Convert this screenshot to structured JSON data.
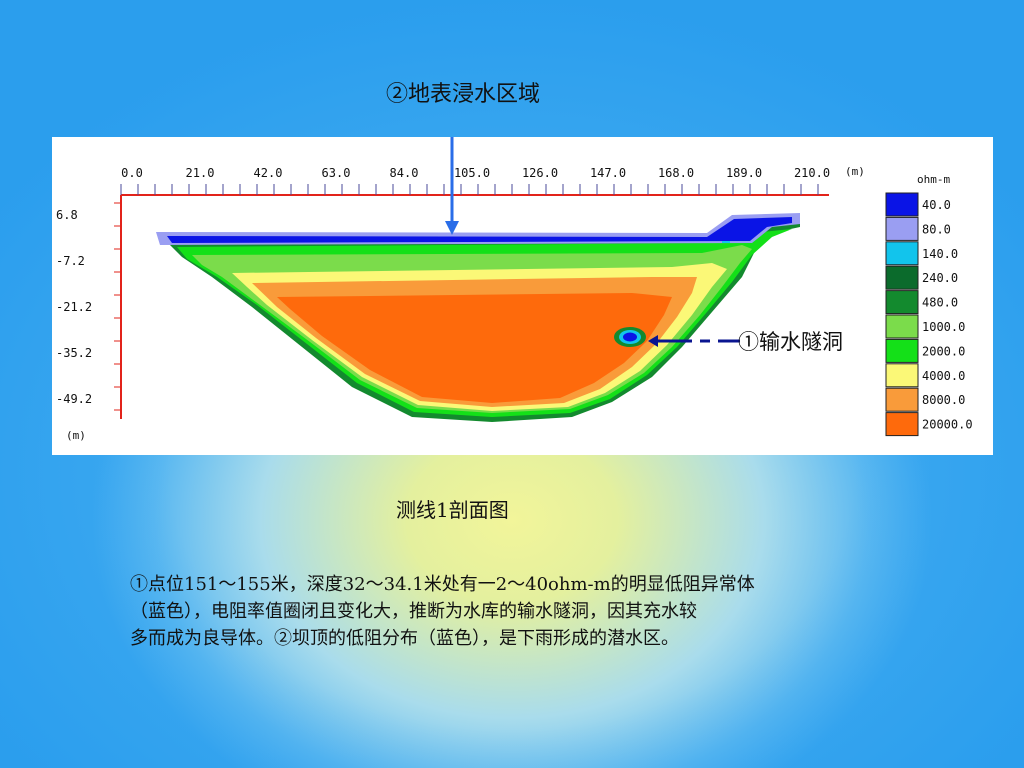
{
  "top_label": "②地表浸水区域",
  "tunnel_label": "①输水隧洞",
  "figure_caption": "测线1剖面图",
  "description_lines": [
    "①点位151～155米，深度32～34.1米处有一2～40ohm-m的明显低阻异常体",
    "（蓝色），电阻率值圈闭且变化大，推断为水库的输水隧洞，因其充水较",
    "多而成为良导体。②坝顶的低阻分布（蓝色），是下雨形成的潜水区。"
  ],
  "profile": {
    "x_ticks": [
      "0.0",
      "21.0",
      "42.0",
      "63.0",
      "84.0",
      "105.0",
      "126.0",
      "147.0",
      "168.0",
      "189.0",
      "210.0"
    ],
    "x_unit": "(m)",
    "y_ticks": [
      "6.8",
      "-7.2",
      "-21.2",
      "-35.2",
      "-49.2"
    ],
    "y_unit": "(m)",
    "legend_unit": "ohm-m",
    "legend": [
      {
        "label": "40.0",
        "color": "#0a14e6"
      },
      {
        "label": "80.0",
        "color": "#9a9ef2"
      },
      {
        "label": "140.0",
        "color": "#12c4ec"
      },
      {
        "label": "240.0",
        "color": "#0b6b2c"
      },
      {
        "label": "480.0",
        "color": "#138a2e"
      },
      {
        "label": "1000.0",
        "color": "#7bdc4b"
      },
      {
        "label": "2000.0",
        "color": "#14e018"
      },
      {
        "label": "4000.0",
        "color": "#fbf877"
      },
      {
        "label": "8000.0",
        "color": "#f99b3a"
      },
      {
        "label": "20000.0",
        "color": "#fe6a0c"
      }
    ]
  },
  "colors": {
    "arrow": "#2a6de8",
    "tunnel_arrow": "#0a1590"
  }
}
